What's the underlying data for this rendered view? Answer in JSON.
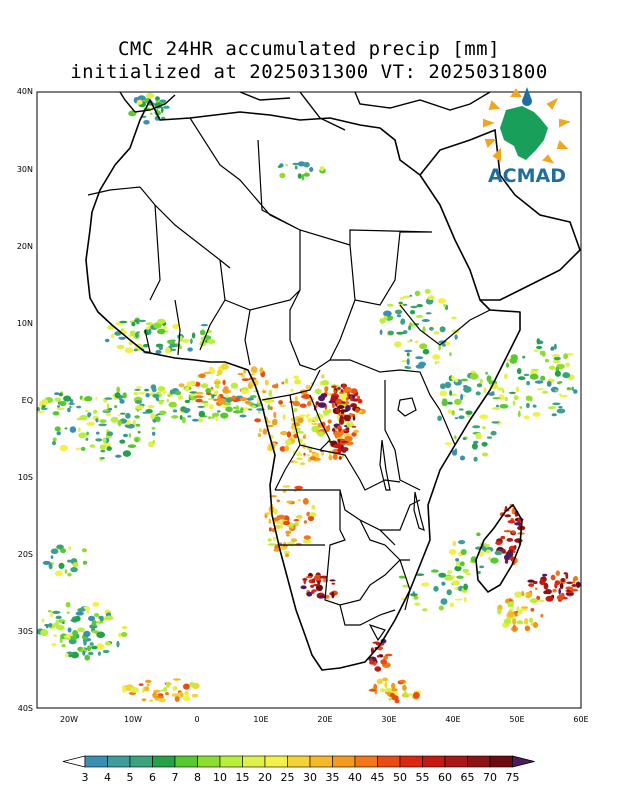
{
  "title": {
    "line1": "CMC 24HR accumulated precip [mm]",
    "line2": "initialized at 2025031300 VT: 2025031800"
  },
  "logo": {
    "text": "ACMAD",
    "icon": "africa-map-icon",
    "color": "#1e6fa0"
  },
  "axes": {
    "lat_labels": [
      "40N",
      "30N",
      "20N",
      "10N",
      "EQ",
      "10S",
      "20S",
      "30S",
      "40S"
    ],
    "lon_labels": [
      "20W",
      "10W",
      "0",
      "10E",
      "20E",
      "30E",
      "40E",
      "50E",
      "60E"
    ],
    "lat_range": [
      -40,
      40
    ],
    "lon_range": [
      -25,
      60
    ]
  },
  "colorbar": {
    "labels": [
      "3",
      "4",
      "5",
      "6",
      "7",
      "8",
      "10",
      "15",
      "20",
      "25",
      "30",
      "35",
      "40",
      "45",
      "50",
      "55",
      "60",
      "65",
      "70",
      "75"
    ],
    "colors": [
      "#3b8fb3",
      "#3e9c9a",
      "#3ba37e",
      "#26a14a",
      "#58c832",
      "#8ddc30",
      "#b8ee3c",
      "#dff04a",
      "#f4f04a",
      "#f4d23a",
      "#f4b92a",
      "#f49a1e",
      "#f07818",
      "#e84c14",
      "#dc2610",
      "#c41810",
      "#a81818",
      "#8c1414",
      "#6c0c10",
      "#501a60"
    ]
  },
  "precip_areas": [
    {
      "region": "Congo basin",
      "intensity": "heavy"
    },
    {
      "region": "Gulf of Guinea coast",
      "intensity": "moderate"
    },
    {
      "region": "Madagascar east coast",
      "intensity": "heavy"
    },
    {
      "region": "South-east of Madagascar",
      "intensity": "heavy"
    },
    {
      "region": "South-west Atlantic off Cape",
      "intensity": "moderate"
    },
    {
      "region": "Angola / Zambia",
      "intensity": "moderate"
    },
    {
      "region": "Morocco",
      "intensity": "light"
    }
  ]
}
